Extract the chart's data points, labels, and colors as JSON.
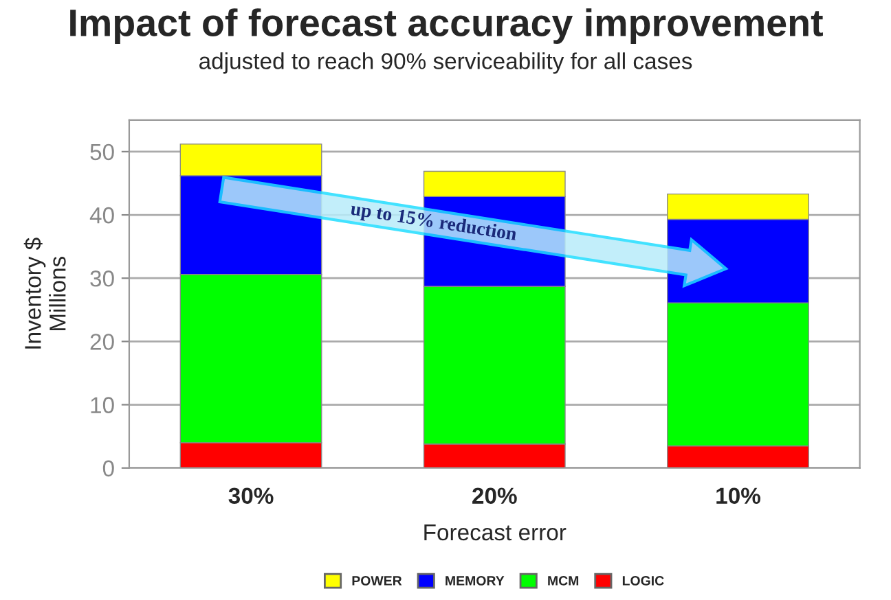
{
  "chart_data": {
    "type": "bar",
    "stacked": true,
    "title": "Impact of forecast accuracy improvement",
    "subtitle": "adjusted to reach 90% serviceability for all cases",
    "xlabel": "Forecast error",
    "ylabel": "Inventory $\nMillions",
    "categories": [
      "30%",
      "20%",
      "10%"
    ],
    "series": [
      {
        "name": "LOGIC",
        "color": "#ff0000",
        "values": [
          4.0,
          3.8,
          3.5
        ]
      },
      {
        "name": "MCM",
        "color": "#00ff00",
        "values": [
          26.6,
          24.9,
          22.6
        ]
      },
      {
        "name": "MEMORY",
        "color": "#0000ff",
        "values": [
          15.6,
          14.2,
          13.2
        ]
      },
      {
        "name": "POWER",
        "color": "#ffff00",
        "values": [
          5.0,
          4.0,
          4.0
        ]
      }
    ],
    "ylim": [
      0,
      55
    ],
    "yticks": [
      0,
      10,
      20,
      30,
      40,
      50
    ],
    "grid": "y",
    "legend": "bottom",
    "annotations": [
      "up to 15% reduction"
    ]
  }
}
